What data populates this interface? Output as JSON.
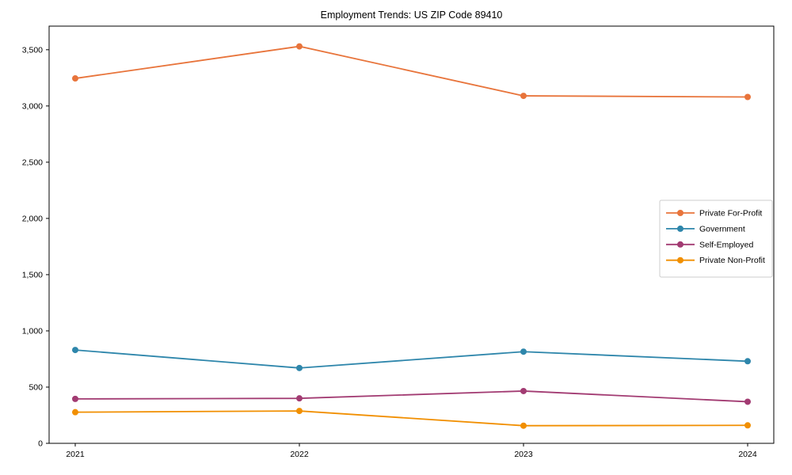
{
  "window": {
    "title": "Employment Trends: US ZIP Code 89410"
  },
  "chart_data": {
    "type": "line",
    "title": "Employment Trends: US ZIP Code 89410",
    "categories": [
      "2021",
      "2022",
      "2023",
      "2024"
    ],
    "series": [
      {
        "name": "Private For-Profit",
        "color": "#E8743B",
        "values": [
          3245,
          3530,
          3090,
          3080
        ]
      },
      {
        "name": "Government",
        "color": "#2E86AB",
        "values": [
          830,
          670,
          815,
          730
        ]
      },
      {
        "name": "Self-Employed",
        "color": "#A23B72",
        "values": [
          395,
          400,
          465,
          370
        ]
      },
      {
        "name": "Private Non-Profit",
        "color": "#F18F01",
        "values": [
          277,
          288,
          157,
          160
        ]
      }
    ],
    "xlabel": "",
    "ylabel": "",
    "ylim": [
      0,
      3710
    ],
    "yticks": [
      0,
      500,
      1000,
      1500,
      2000,
      2500,
      3000,
      3500
    ],
    "ytick_labels": [
      "0",
      "500",
      "1,000",
      "1,500",
      "2,000",
      "2,500",
      "3,000",
      "3,500"
    ],
    "grid": false,
    "legend_position": "right-middle",
    "marker": "circle",
    "axes_color": "#000000",
    "legend_border_color": "#cccccc",
    "legend_background": "#ffffff"
  }
}
